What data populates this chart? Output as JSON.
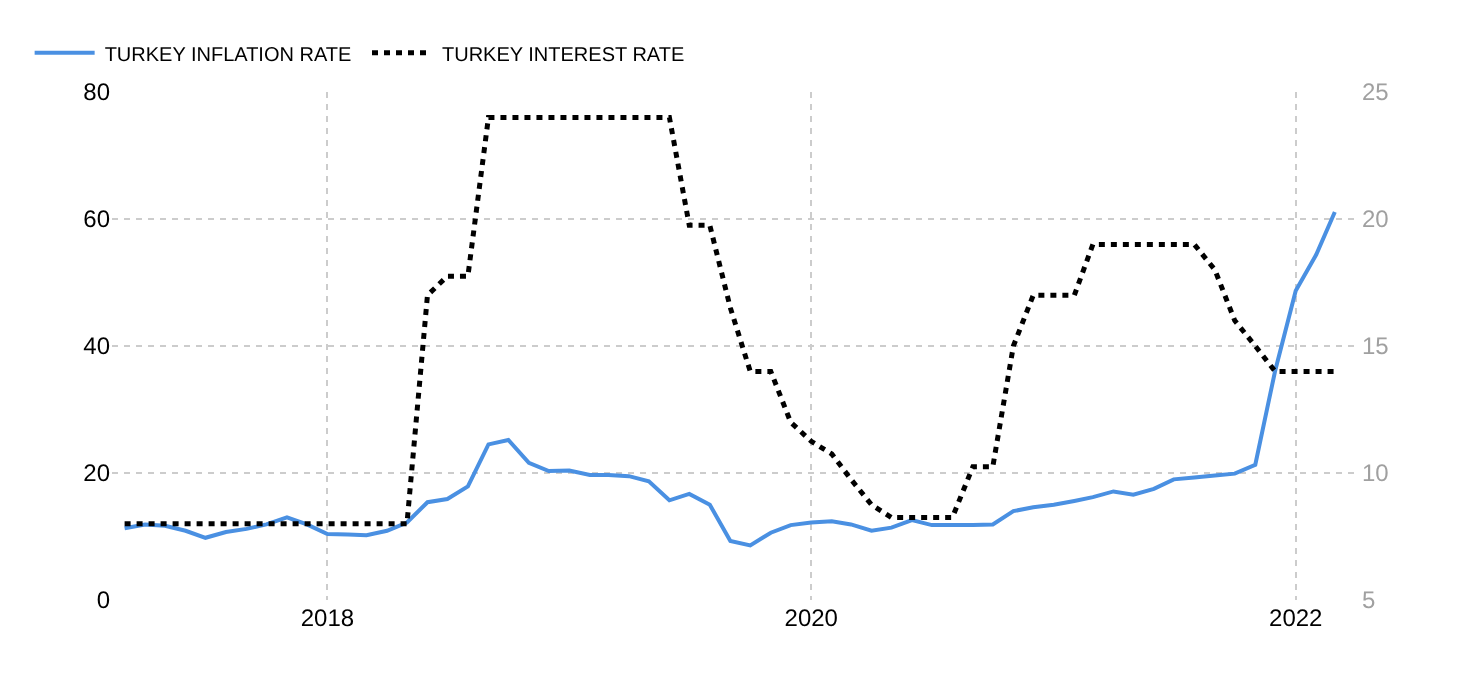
{
  "chart_data": {
    "type": "line",
    "x": [
      "2017-03",
      "2017-04",
      "2017-05",
      "2017-06",
      "2017-07",
      "2017-08",
      "2017-09",
      "2017-10",
      "2017-11",
      "2017-12",
      "2018-01",
      "2018-02",
      "2018-03",
      "2018-04",
      "2018-05",
      "2018-06",
      "2018-07",
      "2018-08",
      "2018-09",
      "2018-10",
      "2018-11",
      "2018-12",
      "2019-01",
      "2019-02",
      "2019-03",
      "2019-04",
      "2019-05",
      "2019-06",
      "2019-07",
      "2019-08",
      "2019-09",
      "2019-10",
      "2019-11",
      "2019-12",
      "2020-01",
      "2020-02",
      "2020-03",
      "2020-04",
      "2020-05",
      "2020-06",
      "2020-07",
      "2020-08",
      "2020-09",
      "2020-10",
      "2020-11",
      "2020-12",
      "2021-01",
      "2021-02",
      "2021-03",
      "2021-04",
      "2021-05",
      "2021-06",
      "2021-07",
      "2021-08",
      "2021-09",
      "2021-10",
      "2021-11",
      "2021-12",
      "2022-01",
      "2022-02",
      "2022-03"
    ],
    "series": [
      {
        "name": "TURKEY INFLATION RATE",
        "color": "#4a90e2",
        "line_style": "solid",
        "values": [
          11.3,
          11.9,
          11.7,
          10.9,
          9.8,
          10.7,
          11.2,
          11.9,
          13.0,
          11.9,
          10.4,
          10.3,
          10.2,
          10.9,
          12.2,
          15.4,
          15.9,
          17.9,
          24.5,
          25.2,
          21.6,
          20.3,
          20.4,
          19.7,
          19.7,
          19.5,
          18.7,
          15.7,
          16.7,
          15.0,
          9.3,
          8.6,
          10.6,
          11.8,
          12.2,
          12.4,
          11.9,
          10.9,
          11.4,
          12.6,
          11.8,
          11.8,
          11.8,
          11.9,
          14.0,
          14.6,
          15.0,
          15.6,
          16.2,
          17.1,
          16.6,
          17.5,
          19.0,
          19.3,
          19.6,
          19.9,
          21.3,
          36.1,
          48.7,
          54.4,
          61.1
        ]
      },
      {
        "name": "TURKEY INTEREST RATE",
        "color": "#000000",
        "line_style": "dotted",
        "axis": "y2",
        "values": [
          8,
          8,
          8,
          8,
          8,
          8,
          8,
          8,
          8,
          8,
          8,
          8,
          8,
          8,
          8,
          17,
          17.75,
          17.75,
          24,
          24,
          24,
          24,
          24,
          24,
          24,
          24,
          24,
          24,
          19.75,
          19.75,
          16.5,
          14,
          14,
          12,
          11.25,
          10.75,
          9.75,
          8.75,
          8.25,
          8.25,
          8.25,
          8.25,
          10.25,
          10.25,
          15,
          17,
          17,
          17,
          19,
          19,
          19,
          19,
          19,
          19,
          18,
          16,
          15,
          14,
          14,
          14,
          14
        ]
      }
    ],
    "xlim": [
      "2017-02-10",
      "2022-04-08"
    ],
    "xticks": [
      {
        "value": "2018-01-01",
        "label": "2018"
      },
      {
        "value": "2020-01-01",
        "label": "2020"
      },
      {
        "value": "2022-01-01",
        "label": "2022"
      }
    ],
    "ylim": [
      0,
      80
    ],
    "yticks": [
      0,
      20,
      40,
      60,
      80
    ],
    "y2lim": [
      5,
      25
    ],
    "y2ticks": [
      5,
      10,
      15,
      20,
      25
    ],
    "grid": true,
    "legend": "top left",
    "marker": "none"
  }
}
